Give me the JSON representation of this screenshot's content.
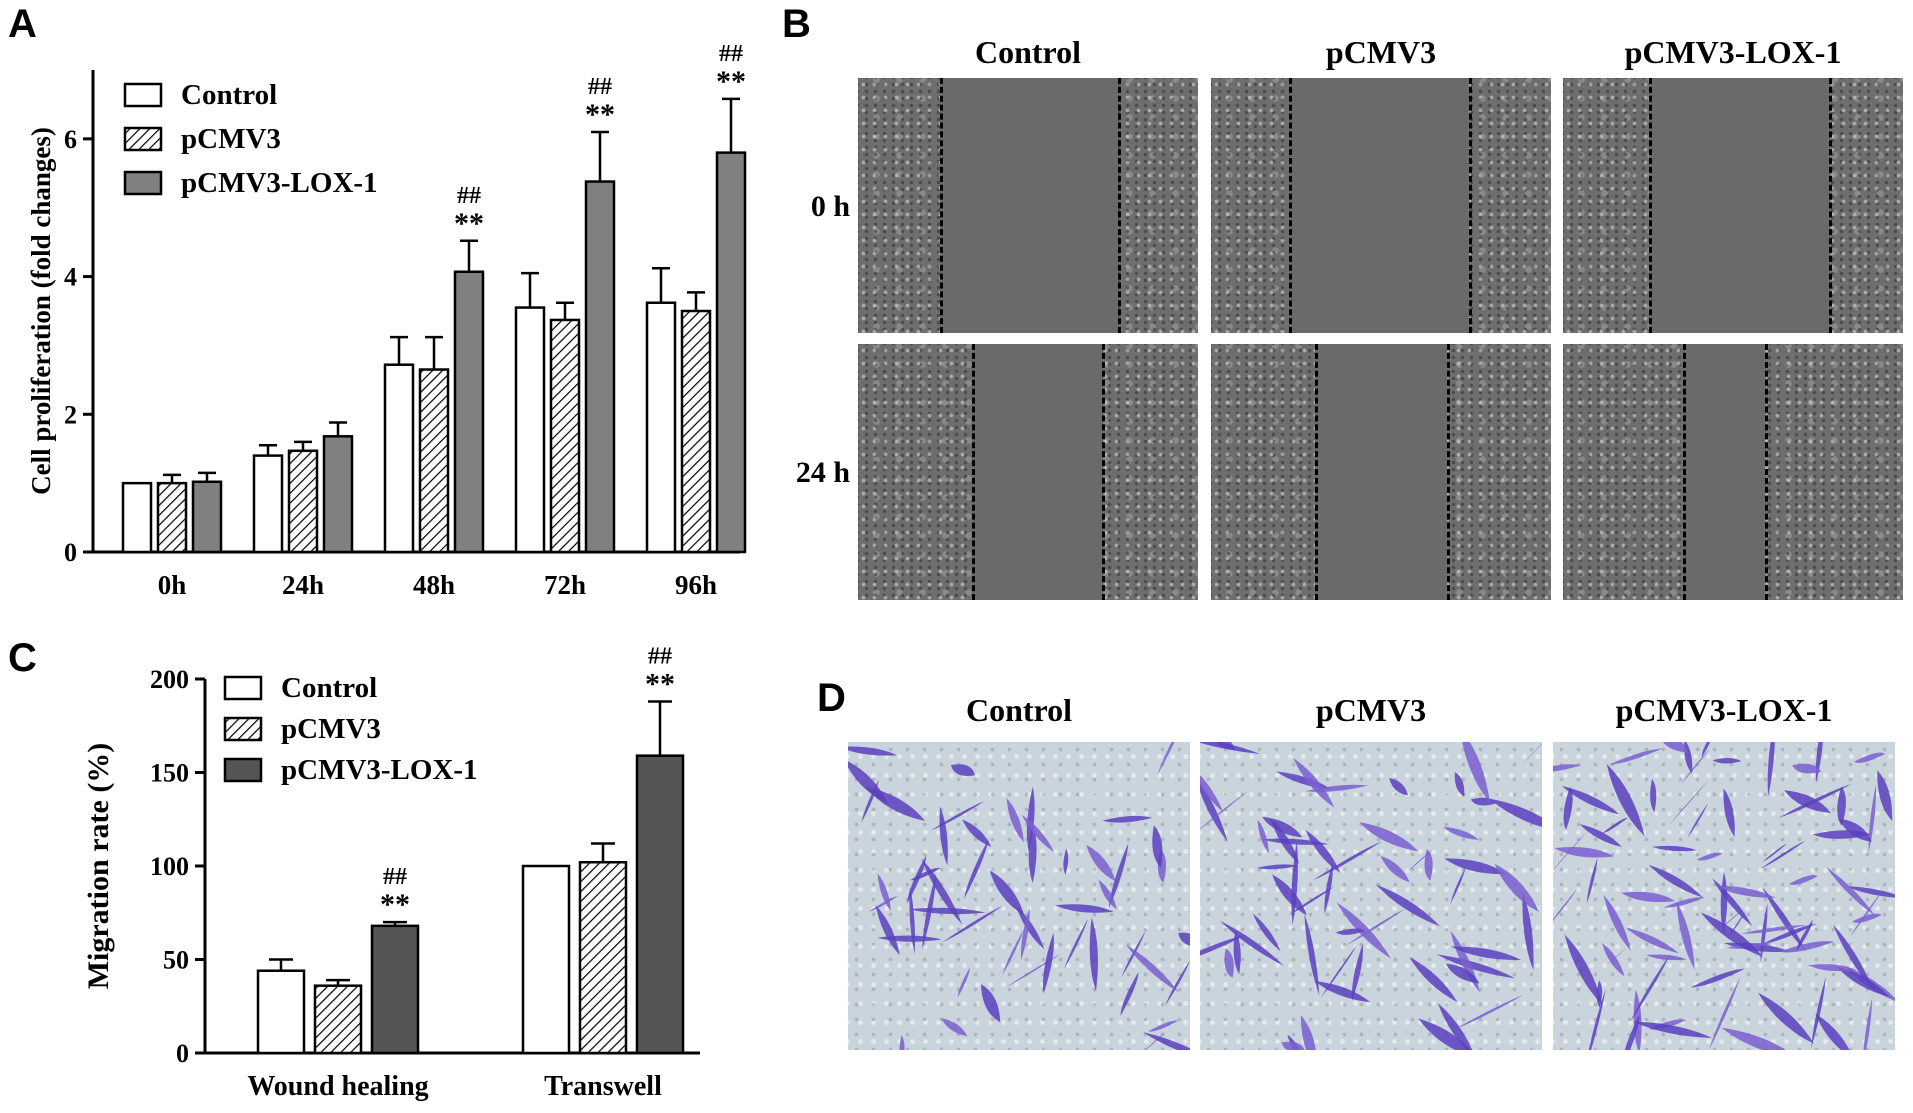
{
  "panels": {
    "a": "A",
    "b": "B",
    "c": "C",
    "d": "D"
  },
  "chart_data": [
    {
      "type": "bar",
      "panel": "A",
      "ylabel": "Cell proliferation (fold changes)",
      "categories": [
        "0h",
        "24h",
        "48h",
        "72h",
        "96h"
      ],
      "ylim": [
        0,
        7
      ],
      "yticks": [
        0,
        2,
        4,
        6
      ],
      "series": [
        {
          "name": "Control",
          "values": [
            1.0,
            1.4,
            2.72,
            3.55,
            3.62
          ],
          "errors": [
            0.0,
            0.15,
            0.4,
            0.5,
            0.5
          ]
        },
        {
          "name": "pCMV3",
          "values": [
            1.0,
            1.47,
            2.65,
            3.37,
            3.5
          ],
          "errors": [
            0.12,
            0.13,
            0.47,
            0.25,
            0.27
          ]
        },
        {
          "name": "pCMV3-LOX-1",
          "values": [
            1.02,
            1.68,
            4.07,
            5.38,
            5.8
          ],
          "errors": [
            0.13,
            0.2,
            0.45,
            0.72,
            0.78
          ]
        }
      ],
      "annotations": [
        {
          "category": "48h",
          "series": "pCMV3-LOX-1",
          "lines": [
            "##",
            "**"
          ]
        },
        {
          "category": "72h",
          "series": "pCMV3-LOX-1",
          "lines": [
            "##",
            "**"
          ]
        },
        {
          "category": "96h",
          "series": "pCMV3-LOX-1",
          "lines": [
            "##",
            "**"
          ]
        }
      ],
      "legend_position": "top-left",
      "grid": false
    },
    {
      "type": "bar",
      "panel": "C",
      "ylabel": "Migration rate (%)",
      "categories": [
        "Wound healing",
        "Transwell"
      ],
      "ylim": [
        0,
        200
      ],
      "yticks": [
        0,
        50,
        100,
        150,
        200
      ],
      "series": [
        {
          "name": "Control",
          "values": [
            44,
            100
          ],
          "errors": [
            6,
            0
          ]
        },
        {
          "name": "pCMV3",
          "values": [
            36,
            102
          ],
          "errors": [
            3,
            10
          ]
        },
        {
          "name": "pCMV3-LOX-1",
          "values": [
            68,
            159
          ],
          "errors": [
            2,
            29
          ]
        }
      ],
      "annotations": [
        {
          "category": "Wound healing",
          "series": "pCMV3-LOX-1",
          "lines": [
            "##",
            "**"
          ]
        },
        {
          "category": "Transwell",
          "series": "pCMV3-LOX-1",
          "lines": [
            "##",
            "**"
          ]
        }
      ],
      "legend_position": "top-left",
      "grid": false
    }
  ],
  "panel_b": {
    "columns": [
      "Control",
      "pCMV3",
      "pCMV3-LOX-1"
    ],
    "rows": [
      "0 h",
      "24 h"
    ]
  },
  "panel_d": {
    "columns": [
      "Control",
      "pCMV3",
      "pCMV3-LOX-1"
    ]
  },
  "colors": {
    "control_fill": "#ffffff",
    "pcmv3_fill": "hatched",
    "lox1_fill_A": "#808080",
    "lox1_fill_C": "#555555",
    "stain": "#6a48c4"
  }
}
